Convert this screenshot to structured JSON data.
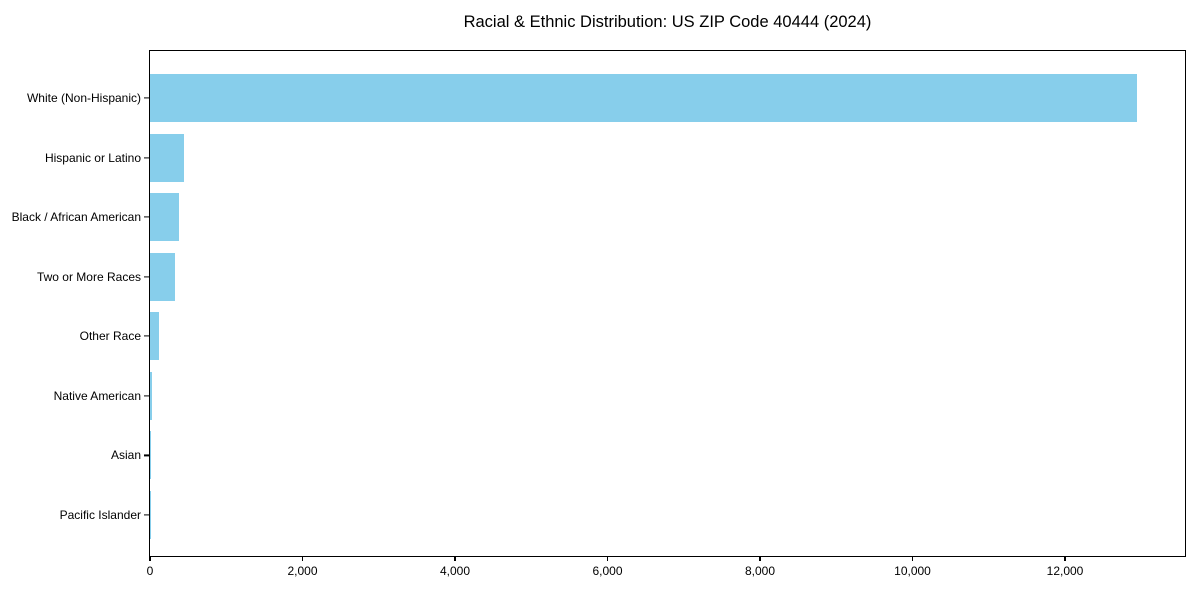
{
  "chart_data": {
    "type": "bar",
    "orientation": "horizontal",
    "title": "Racial & Ethnic Distribution: US ZIP Code 40444 (2024)",
    "categories": [
      "White (Non-Hispanic)",
      "Hispanic or Latino",
      "Black / African American",
      "Two or More Races",
      "Other Race",
      "Native American",
      "Asian",
      "Pacific Islander"
    ],
    "values": [
      12950,
      450,
      380,
      330,
      120,
      22,
      6,
      2
    ],
    "xlabel": "",
    "ylabel": "",
    "xlim": [
      0,
      13600
    ],
    "xticks": [
      0,
      2000,
      4000,
      6000,
      8000,
      10000,
      12000
    ],
    "xtick_labels": [
      "0",
      "2,000",
      "4,000",
      "6,000",
      "8,000",
      "10,000",
      "12,000"
    ],
    "grid": false,
    "legend": null,
    "bar_color": "#87CEEB",
    "background_color": "#FFFFFF",
    "axis_color": "#000000",
    "text_color": "#000000"
  }
}
